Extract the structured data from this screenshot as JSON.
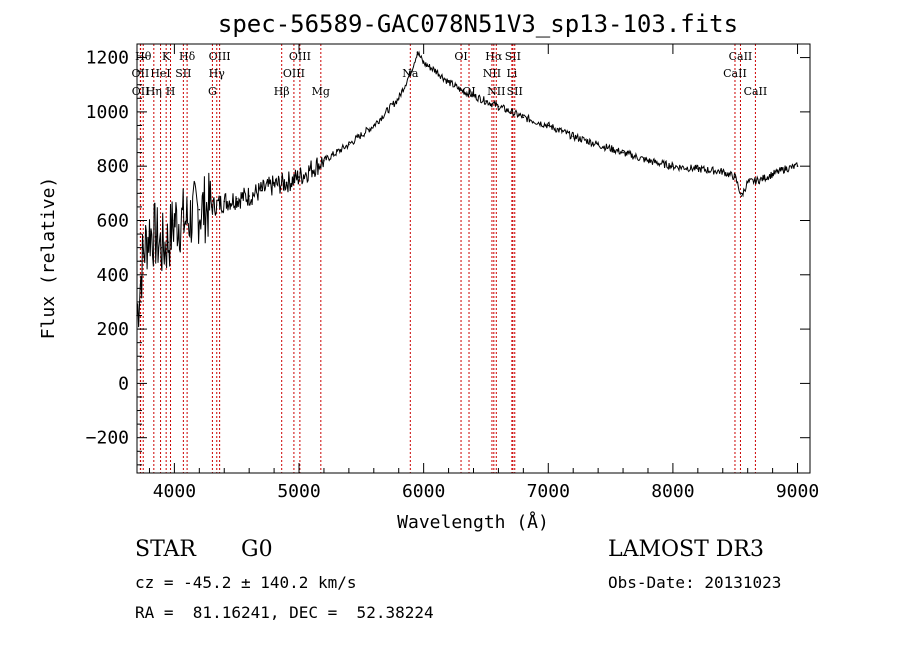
{
  "chart_data": {
    "type": "line",
    "title": "spec-56589-GAC078N51V3_sp13-103.fits",
    "xlabel": "Wavelength (Å)",
    "ylabel": "Flux (relative)",
    "xlim": [
      3700,
      9100
    ],
    "ylim": [
      -330,
      1250
    ],
    "xticks": [
      4000,
      5000,
      6000,
      7000,
      8000,
      9000
    ],
    "xtick_labels": [
      "4000",
      "5000",
      "6000",
      "7000",
      "8000",
      "9000"
    ],
    "yticks": [
      -200,
      0,
      200,
      400,
      600,
      800,
      1000,
      1200
    ],
    "ytick_labels": [
      "−200",
      "0",
      "200",
      "400",
      "600",
      "800",
      "1000",
      "1200"
    ],
    "series": [
      {
        "name": "flux",
        "x": [
          3700,
          3750,
          3800,
          3850,
          3900,
          3950,
          4000,
          4100,
          4200,
          4300,
          4400,
          4500,
          4600,
          4700,
          4800,
          4900,
          5000,
          5200,
          5400,
          5600,
          5800,
          5900,
          5950,
          6000,
          6100,
          6200,
          6300,
          6400,
          6500,
          6600,
          6700,
          6800,
          7000,
          7200,
          7400,
          7600,
          7800,
          8000,
          8200,
          8400,
          8500,
          8550,
          8600,
          8700,
          8800,
          8900,
          9000
        ],
        "y": [
          250,
          480,
          560,
          540,
          500,
          520,
          600,
          600,
          640,
          650,
          670,
          680,
          690,
          710,
          730,
          740,
          760,
          820,
          880,
          950,
          1050,
          1150,
          1220,
          1180,
          1150,
          1110,
          1080,
          1060,
          1040,
          1020,
          1000,
          980,
          950,
          910,
          880,
          850,
          820,
          800,
          790,
          780,
          760,
          690,
          740,
          750,
          770,
          790,
          800
        ]
      }
    ],
    "line_color": "#000000",
    "marker_color": "#cc0000",
    "lines": [
      {
        "label": "Hθ",
        "x": 3750,
        "row": 0
      },
      {
        "label": "OII",
        "x": 3727,
        "row": 1
      },
      {
        "label": "OII",
        "x": 3729,
        "row": 2
      },
      {
        "label": "K",
        "x": 3934,
        "row": 0
      },
      {
        "label": "HeI",
        "x": 3889,
        "row": 1
      },
      {
        "label": "Hη",
        "x": 3835,
        "row": 2
      },
      {
        "label": "SII",
        "x": 4072,
        "row": 1
      },
      {
        "label": "H",
        "x": 3969,
        "row": 2
      },
      {
        "label": "Hδ",
        "x": 4102,
        "row": 0
      },
      {
        "label": "OIII",
        "x": 4363,
        "row": 0
      },
      {
        "label": "Hγ",
        "x": 4340,
        "row": 1
      },
      {
        "label": "G",
        "x": 4305,
        "row": 2
      },
      {
        "label": "Hβ",
        "x": 4861,
        "row": 2
      },
      {
        "label": "OIII",
        "x": 5007,
        "row": 0
      },
      {
        "label": "OIII",
        "x": 4959,
        "row": 1
      },
      {
        "label": "Mg",
        "x": 5175,
        "row": 2
      },
      {
        "label": "Na",
        "x": 5893,
        "row": 1
      },
      {
        "label": "OI",
        "x": 6300,
        "row": 0
      },
      {
        "label": "OI",
        "x": 6364,
        "row": 2
      },
      {
        "label": "Hα",
        "x": 6563,
        "row": 0
      },
      {
        "label": "SII",
        "x": 6716,
        "row": 0
      },
      {
        "label": "NII",
        "x": 6548,
        "row": 1
      },
      {
        "label": "Li",
        "x": 6708,
        "row": 1
      },
      {
        "label": "NII",
        "x": 6583,
        "row": 2
      },
      {
        "label": "SII",
        "x": 6731,
        "row": 2
      },
      {
        "label": "CaII",
        "x": 8542,
        "row": 0
      },
      {
        "label": "CaII",
        "x": 8498,
        "row": 1
      },
      {
        "label": "CaII",
        "x": 8662,
        "row": 2
      }
    ]
  },
  "info": {
    "class": "STAR",
    "subclass": "G0",
    "survey": "LAMOST DR3",
    "cz": "cz = -45.2 ± 140.2 km/s",
    "obs_date": "Obs-Date: 20131023",
    "coords": "RA =  81.16241, DEC =  52.38224"
  }
}
